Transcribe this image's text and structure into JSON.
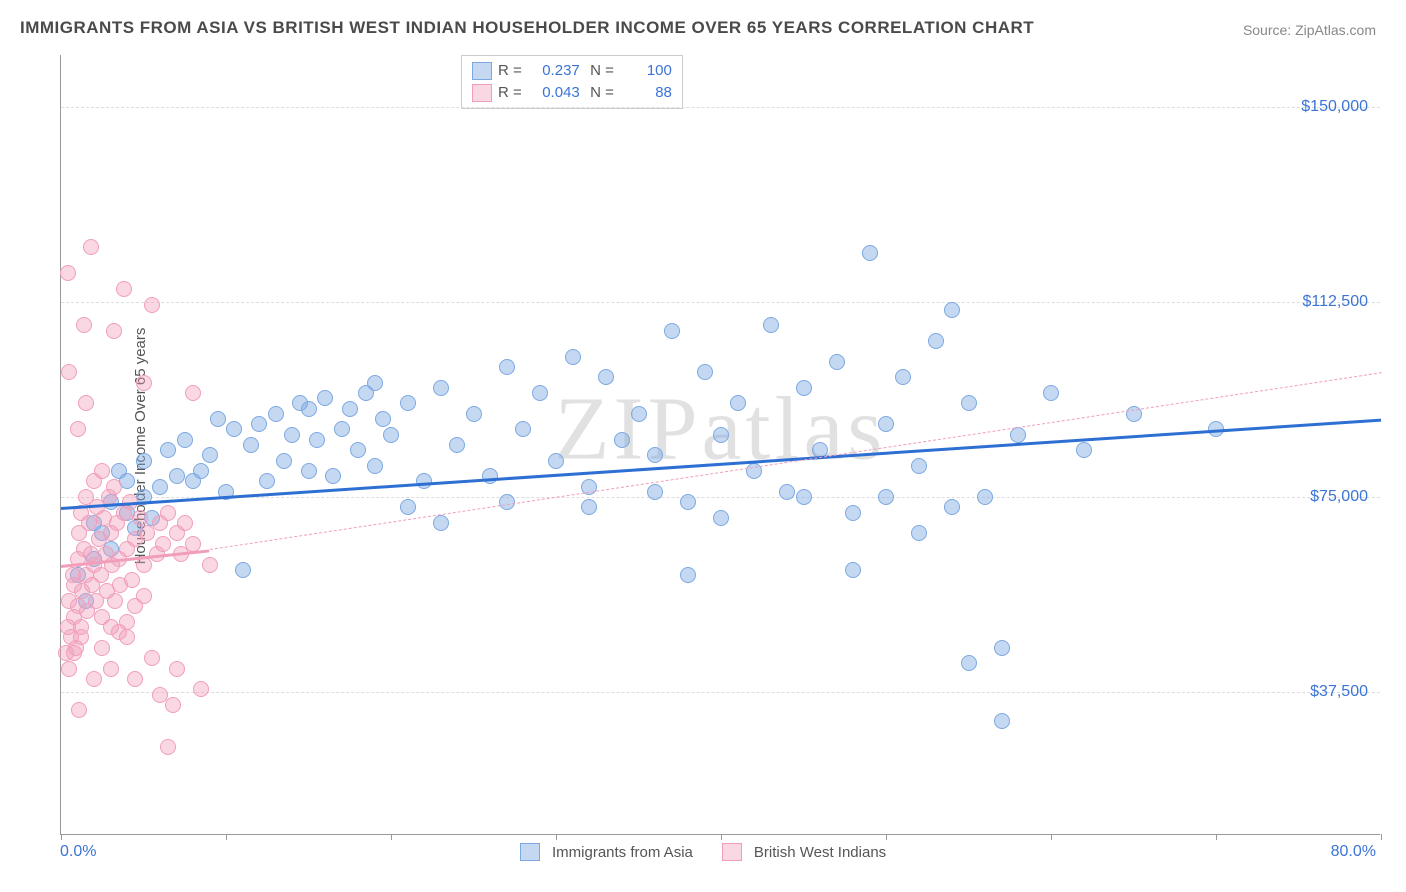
{
  "title": "IMMIGRANTS FROM ASIA VS BRITISH WEST INDIAN HOUSEHOLDER INCOME OVER 65 YEARS CORRELATION CHART",
  "source": "Source: ZipAtlas.com",
  "ylabel": "Householder Income Over 65 years",
  "watermark": "ZIPatlas",
  "chart": {
    "type": "scatter",
    "xlim": [
      0,
      80
    ],
    "ylim": [
      10000,
      160000
    ],
    "x_min_label": "0.0%",
    "x_max_label": "80.0%",
    "y_ticks": [
      37500,
      75000,
      112500,
      150000
    ],
    "y_tick_labels": [
      "$37,500",
      "$75,000",
      "$112,500",
      "$150,000"
    ],
    "x_tick_positions": [
      0,
      10,
      20,
      30,
      40,
      50,
      60,
      70,
      80
    ],
    "background_color": "#ffffff",
    "grid_color": "#dddddd",
    "point_radius": 8,
    "point_stroke_width": 1.5,
    "series": [
      {
        "name": "Immigrants from Asia",
        "fill": "rgba(125,168,227,0.45)",
        "stroke": "#7da8e3",
        "R": "0.237",
        "N": "100",
        "trend": {
          "y_at_xmin": 73000,
          "y_at_xmax": 90000,
          "y_extrap_at_xmax": 99000,
          "dash": false,
          "color": "#2e6fd3",
          "width": 3
        },
        "points": [
          [
            1,
            60000
          ],
          [
            1.5,
            55000
          ],
          [
            2,
            63000
          ],
          [
            2,
            70000
          ],
          [
            2.5,
            68000
          ],
          [
            3,
            74000
          ],
          [
            3,
            65000
          ],
          [
            3.5,
            80000
          ],
          [
            4,
            72000
          ],
          [
            4,
            78000
          ],
          [
            4.5,
            69000
          ],
          [
            5,
            75000
          ],
          [
            5,
            82000
          ],
          [
            5.5,
            71000
          ],
          [
            6,
            77000
          ],
          [
            6.5,
            84000
          ],
          [
            7,
            79000
          ],
          [
            7.5,
            86000
          ],
          [
            8,
            78000
          ],
          [
            8.5,
            80000
          ],
          [
            9,
            83000
          ],
          [
            9.5,
            90000
          ],
          [
            10,
            76000
          ],
          [
            10.5,
            88000
          ],
          [
            11,
            61000
          ],
          [
            11.5,
            85000
          ],
          [
            12,
            89000
          ],
          [
            12.5,
            78000
          ],
          [
            13,
            91000
          ],
          [
            13.5,
            82000
          ],
          [
            14,
            87000
          ],
          [
            14.5,
            93000
          ],
          [
            15,
            80000
          ],
          [
            15.5,
            86000
          ],
          [
            16,
            94000
          ],
          [
            16.5,
            79000
          ],
          [
            17,
            88000
          ],
          [
            17.5,
            92000
          ],
          [
            18,
            84000
          ],
          [
            18.5,
            95000
          ],
          [
            19,
            81000
          ],
          [
            19.5,
            90000
          ],
          [
            20,
            87000
          ],
          [
            21,
            93000
          ],
          [
            22,
            78000
          ],
          [
            23,
            96000
          ],
          [
            24,
            85000
          ],
          [
            25,
            91000
          ],
          [
            26,
            79000
          ],
          [
            27,
            100000
          ],
          [
            28,
            88000
          ],
          [
            29,
            95000
          ],
          [
            30,
            82000
          ],
          [
            31,
            102000
          ],
          [
            32,
            77000
          ],
          [
            33,
            98000
          ],
          [
            34,
            86000
          ],
          [
            35,
            91000
          ],
          [
            36,
            83000
          ],
          [
            37,
            107000
          ],
          [
            38,
            74000
          ],
          [
            39,
            99000
          ],
          [
            40,
            87000
          ],
          [
            41,
            93000
          ],
          [
            42,
            80000
          ],
          [
            43,
            108000
          ],
          [
            44,
            76000
          ],
          [
            45,
            96000
          ],
          [
            46,
            84000
          ],
          [
            47,
            101000
          ],
          [
            48,
            72000
          ],
          [
            49,
            122000
          ],
          [
            50,
            89000
          ],
          [
            51,
            98000
          ],
          [
            52,
            81000
          ],
          [
            53,
            105000
          ],
          [
            54,
            111000
          ],
          [
            55,
            93000
          ],
          [
            56,
            75000
          ],
          [
            57,
            46000
          ],
          [
            58,
            87000
          ],
          [
            60,
            95000
          ],
          [
            62,
            84000
          ],
          [
            65,
            91000
          ],
          [
            70,
            88000
          ],
          [
            55,
            43000
          ],
          [
            57,
            32000
          ],
          [
            48,
            61000
          ],
          [
            38,
            60000
          ],
          [
            50,
            75000
          ],
          [
            52,
            68000
          ],
          [
            54,
            73000
          ],
          [
            21,
            73000
          ],
          [
            23,
            70000
          ],
          [
            27,
            74000
          ],
          [
            32,
            73000
          ],
          [
            36,
            76000
          ],
          [
            40,
            71000
          ],
          [
            45,
            75000
          ],
          [
            15,
            92000
          ],
          [
            19,
            97000
          ]
        ]
      },
      {
        "name": "British West Indians",
        "fill": "rgba(241,158,186,0.4)",
        "stroke": "#f19eba",
        "R": "0.043",
        "N": "88",
        "trend": {
          "y_at_xmin": 62000,
          "y_at_xmax": 65000,
          "y_extrap_at_xmax": 99000,
          "dash": true,
          "color": "#f19eba",
          "width": 1.5
        },
        "points": [
          [
            0.3,
            45000
          ],
          [
            0.4,
            50000
          ],
          [
            0.5,
            42000
          ],
          [
            0.5,
            55000
          ],
          [
            0.6,
            48000
          ],
          [
            0.7,
            60000
          ],
          [
            0.8,
            52000
          ],
          [
            0.8,
            58000
          ],
          [
            0.9,
            46000
          ],
          [
            1.0,
            63000
          ],
          [
            1.0,
            54000
          ],
          [
            1.1,
            68000
          ],
          [
            1.2,
            50000
          ],
          [
            1.2,
            72000
          ],
          [
            1.3,
            57000
          ],
          [
            1.4,
            65000
          ],
          [
            1.4,
            108000
          ],
          [
            1.5,
            60000
          ],
          [
            1.5,
            75000
          ],
          [
            1.6,
            53000
          ],
          [
            1.7,
            70000
          ],
          [
            1.8,
            64000
          ],
          [
            1.8,
            123000
          ],
          [
            1.9,
            58000
          ],
          [
            2.0,
            78000
          ],
          [
            2.0,
            62000
          ],
          [
            2.1,
            55000
          ],
          [
            2.2,
            73000
          ],
          [
            2.3,
            67000
          ],
          [
            2.4,
            60000
          ],
          [
            2.5,
            80000
          ],
          [
            2.5,
            52000
          ],
          [
            2.6,
            71000
          ],
          [
            2.7,
            64000
          ],
          [
            2.8,
            57000
          ],
          [
            2.9,
            75000
          ],
          [
            3.0,
            68000
          ],
          [
            3.0,
            50000
          ],
          [
            3.1,
            62000
          ],
          [
            3.2,
            107000
          ],
          [
            3.2,
            77000
          ],
          [
            3.3,
            55000
          ],
          [
            3.4,
            70000
          ],
          [
            3.5,
            63000
          ],
          [
            3.6,
            58000
          ],
          [
            3.8,
            72000
          ],
          [
            3.8,
            115000
          ],
          [
            4.0,
            65000
          ],
          [
            4.0,
            48000
          ],
          [
            4.2,
            74000
          ],
          [
            4.3,
            59000
          ],
          [
            4.5,
            67000
          ],
          [
            4.5,
            40000
          ],
          [
            4.8,
            71000
          ],
          [
            5.0,
            62000
          ],
          [
            5.0,
            97000
          ],
          [
            5.2,
            68000
          ],
          [
            5.5,
            44000
          ],
          [
            5.5,
            112000
          ],
          [
            5.8,
            64000
          ],
          [
            6.0,
            70000
          ],
          [
            6.0,
            37000
          ],
          [
            6.2,
            66000
          ],
          [
            6.5,
            72000
          ],
          [
            6.5,
            27000
          ],
          [
            6.8,
            35000
          ],
          [
            7.0,
            68000
          ],
          [
            7.0,
            42000
          ],
          [
            7.3,
            64000
          ],
          [
            7.5,
            70000
          ],
          [
            8.0,
            66000
          ],
          [
            8.0,
            95000
          ],
          [
            8.5,
            38000
          ],
          [
            9.0,
            62000
          ],
          [
            0.5,
            99000
          ],
          [
            1.0,
            88000
          ],
          [
            1.5,
            93000
          ],
          [
            0.8,
            45000
          ],
          [
            1.2,
            48000
          ],
          [
            2.0,
            40000
          ],
          [
            2.5,
            46000
          ],
          [
            3.0,
            42000
          ],
          [
            3.5,
            49000
          ],
          [
            4.0,
            51000
          ],
          [
            4.5,
            54000
          ],
          [
            5.0,
            56000
          ],
          [
            0.4,
            118000
          ],
          [
            1.1,
            34000
          ]
        ]
      }
    ]
  },
  "legend_bottom": [
    {
      "label": "Immigrants from Asia",
      "fill": "rgba(125,168,227,0.45)",
      "stroke": "#7da8e3"
    },
    {
      "label": "British West Indians",
      "fill": "rgba(241,158,186,0.4)",
      "stroke": "#f19eba"
    }
  ]
}
